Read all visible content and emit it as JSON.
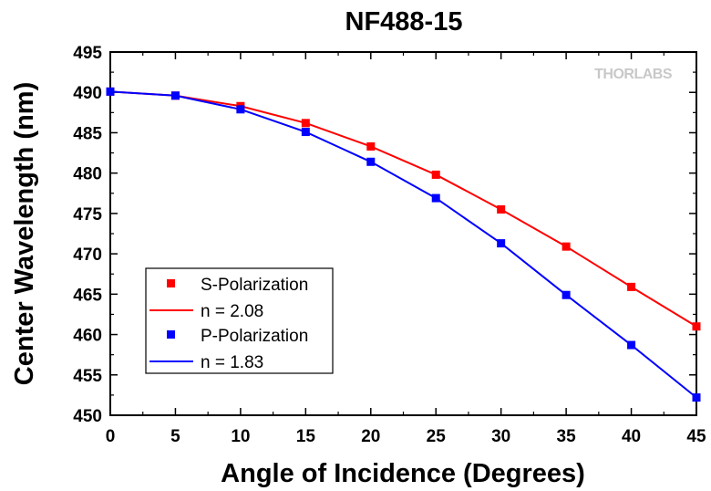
{
  "chart_data": {
    "type": "line",
    "title": "NF488-15",
    "xlabel": "Angle of Incidence (Degrees)",
    "ylabel": "Center Wavelength (nm)",
    "xlim": [
      0,
      45
    ],
    "ylim": [
      450,
      495
    ],
    "x_ticks": [
      0,
      5,
      10,
      15,
      20,
      25,
      30,
      35,
      40,
      45
    ],
    "y_ticks": [
      450,
      455,
      460,
      465,
      470,
      475,
      480,
      485,
      490,
      495
    ],
    "grid": false,
    "legend_position": "bottom-left",
    "x": [
      0,
      5,
      10,
      15,
      20,
      25,
      30,
      35,
      40,
      45
    ],
    "series": [
      {
        "name": "S-Polarization",
        "kind": "marker",
        "color": "#ff0000",
        "values": [
          490.1,
          489.6,
          488.3,
          486.2,
          483.3,
          479.8,
          475.5,
          470.9,
          465.9,
          461.0
        ]
      },
      {
        "name": "n = 2.08",
        "kind": "line",
        "color": "#ff0000",
        "values": [
          490.1,
          489.6,
          488.3,
          486.2,
          483.3,
          479.8,
          475.5,
          470.9,
          465.9,
          461.0
        ]
      },
      {
        "name": "P-Polarization",
        "kind": "marker",
        "color": "#0000ff",
        "values": [
          490.1,
          489.6,
          487.9,
          485.1,
          481.4,
          476.9,
          471.3,
          464.9,
          458.7,
          452.2
        ]
      },
      {
        "name": "n = 1.83",
        "kind": "line",
        "color": "#0000ff",
        "values": [
          490.1,
          489.6,
          487.9,
          485.1,
          481.4,
          476.9,
          471.3,
          464.9,
          458.7,
          452.2
        ]
      }
    ],
    "watermark": "THORLABS"
  }
}
